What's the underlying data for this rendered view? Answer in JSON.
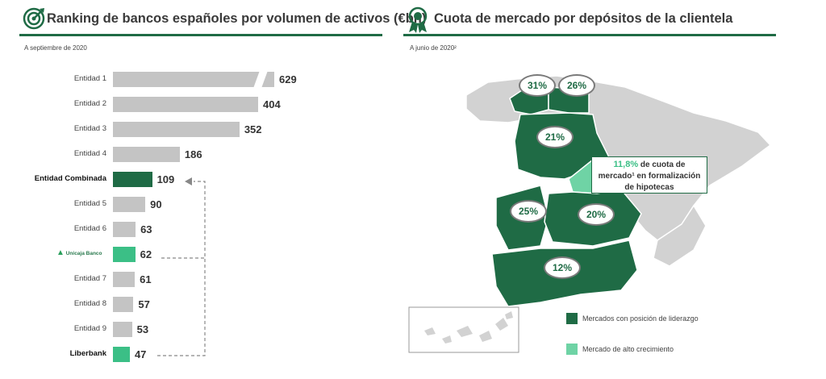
{
  "left_panel": {
    "title": "Ranking de bancos españoles por volumen de activos (€bn)",
    "subtitle": "A septiembre de 2020",
    "bank_logo_text": "Unicaja Banco"
  },
  "right_panel": {
    "title": "Cuota de mercado por depósitos de la clientela",
    "subtitle": "A junio de 2020²",
    "regions": [
      {
        "value": "31%"
      },
      {
        "value": "26%"
      },
      {
        "value": "21%"
      },
      {
        "value": "25%"
      },
      {
        "value": "20%"
      },
      {
        "value": "12%"
      }
    ],
    "callout": {
      "highlight": "11,8%",
      "line1_rest": "de cuota de",
      "line2": "mercado¹ en formalización",
      "line3": "de hipotecas"
    },
    "legend": [
      {
        "label": "Mercados con posición de liderazgo",
        "color": "#1f6b45"
      },
      {
        "label": "Mercado de alto crecimiento",
        "color": "#6fd3a5"
      }
    ]
  },
  "colors": {
    "grey_bar": "#c4c4c4",
    "combined_bar": "#1f6b45",
    "highlight_bar": "#3bbf86",
    "dark_green": "#1f6b45",
    "light_green": "#6fd3a5",
    "map_grey": "#d2d2d2"
  },
  "chart_data": {
    "type": "bar",
    "orientation": "horizontal",
    "title": "Ranking de bancos españoles por volumen de activos (€bn)",
    "subtitle": "A septiembre de 2020",
    "categories": [
      "Entidad 1",
      "Entidad 2",
      "Entidad 3",
      "Entidad 4",
      "Entidad Combinada",
      "Entidad 5",
      "Entidad 6",
      "",
      "Entidad 7",
      "Entidad 8",
      "Entidad 9",
      "Liberbank"
    ],
    "values": [
      629,
      404,
      352,
      186,
      109,
      90,
      63,
      62,
      61,
      57,
      53,
      47
    ],
    "value_labels": [
      "629",
      "404",
      "352",
      "186",
      "109",
      "90",
      "63",
      "62",
      "61",
      "57",
      "53",
      "47"
    ],
    "axis_break_on_first_bar": true,
    "colors": [
      "#c4c4c4",
      "#c4c4c4",
      "#c4c4c4",
      "#c4c4c4",
      "#1f6b45",
      "#c4c4c4",
      "#c4c4c4",
      "#3bbf86",
      "#c4c4c4",
      "#c4c4c4",
      "#c4c4c4",
      "#3bbf86"
    ],
    "bold_labels": [
      4,
      11
    ]
  }
}
